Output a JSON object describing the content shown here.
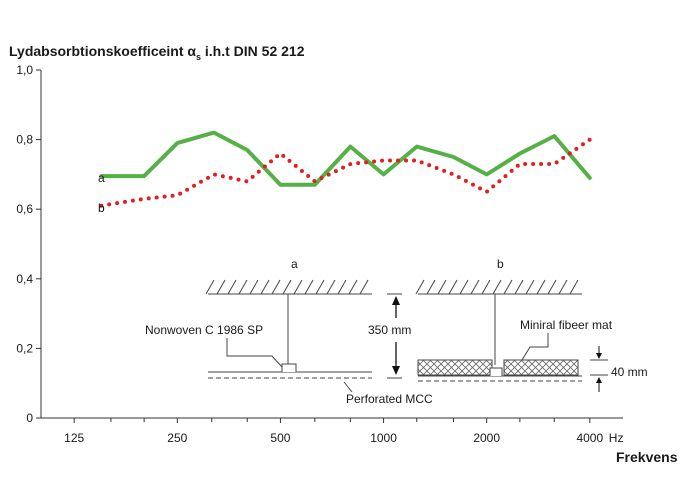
{
  "chart_data": {
    "type": "line",
    "title_main": "Lydabsorbtionskoefficeint α",
    "title_sub": "s",
    "title_rest": " i.h.t DIN 52 212",
    "xlabel": "Frekvens",
    "x_unit": "Hz",
    "yticks": [
      "0",
      "0,2",
      "0,4",
      "0,6",
      "0,8",
      "1,0"
    ],
    "ylim": [
      0,
      1.0
    ],
    "xticks": [
      "125",
      "250",
      "500",
      "1000",
      "2000",
      "4000"
    ],
    "xlim": [
      100,
      5000
    ],
    "x_scale": "log",
    "grid": false,
    "series": [
      {
        "name": "a",
        "color": "#55b146",
        "style": "solid",
        "x": [
          150,
          200,
          250,
          320,
          400,
          500,
          630,
          800,
          1000,
          1250,
          1600,
          2000,
          2500,
          3150,
          4000
        ],
        "values": [
          0.695,
          0.695,
          0.79,
          0.82,
          0.77,
          0.67,
          0.67,
          0.78,
          0.7,
          0.78,
          0.75,
          0.7,
          0.76,
          0.81,
          0.69
        ]
      },
      {
        "name": "b",
        "color": "#e02020",
        "style": "dotted",
        "x": [
          150,
          200,
          250,
          320,
          400,
          500,
          630,
          800,
          1000,
          1250,
          1600,
          2000,
          2500,
          3150,
          4000
        ],
        "values": [
          0.61,
          0.63,
          0.64,
          0.7,
          0.68,
          0.76,
          0.68,
          0.73,
          0.74,
          0.74,
          0.7,
          0.65,
          0.73,
          0.73,
          0.8
        ]
      }
    ],
    "diagram": {
      "label_a": "a",
      "label_b": "b",
      "material_a": "Nonwoven C 1986 SP",
      "distance": "350 mm",
      "material_b": "Miniral fibeer mat",
      "thickness": "40 mm",
      "bottom": "Perforated MCC"
    }
  }
}
